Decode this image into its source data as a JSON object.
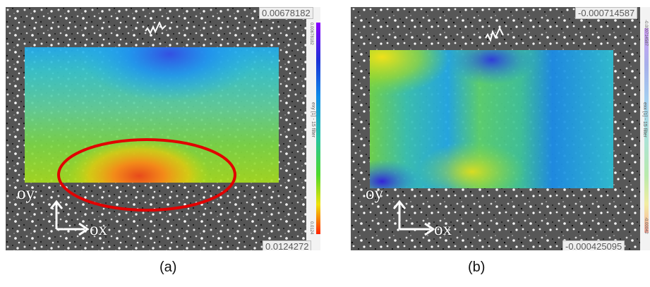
{
  "panel_a": {
    "max_value": "0.00678182",
    "min_value": "0.0124272",
    "legend_name": "exy [1] - 15 filter",
    "legend_top_tick": "0.00678182",
    "legend_bottom_tick": "0.0124",
    "axis_y": "oy",
    "axis_x": "ox",
    "caption": "(a)",
    "highlight_color": "#e10000"
  },
  "panel_b": {
    "max_value": "-0.000714587",
    "min_value": "-0.000425095",
    "legend_name": "exx [1] - 15 filter",
    "legend_top_tick": "-0.000714587",
    "legend_bottom_tick": "-0.00042",
    "axis_y": "oy",
    "axis_x": "ox",
    "caption": "(b)"
  },
  "colors": {
    "speckle_background": "#5f5f5f",
    "scale_top": "#8b00ff",
    "scale_bottom": "#ff2400"
  }
}
